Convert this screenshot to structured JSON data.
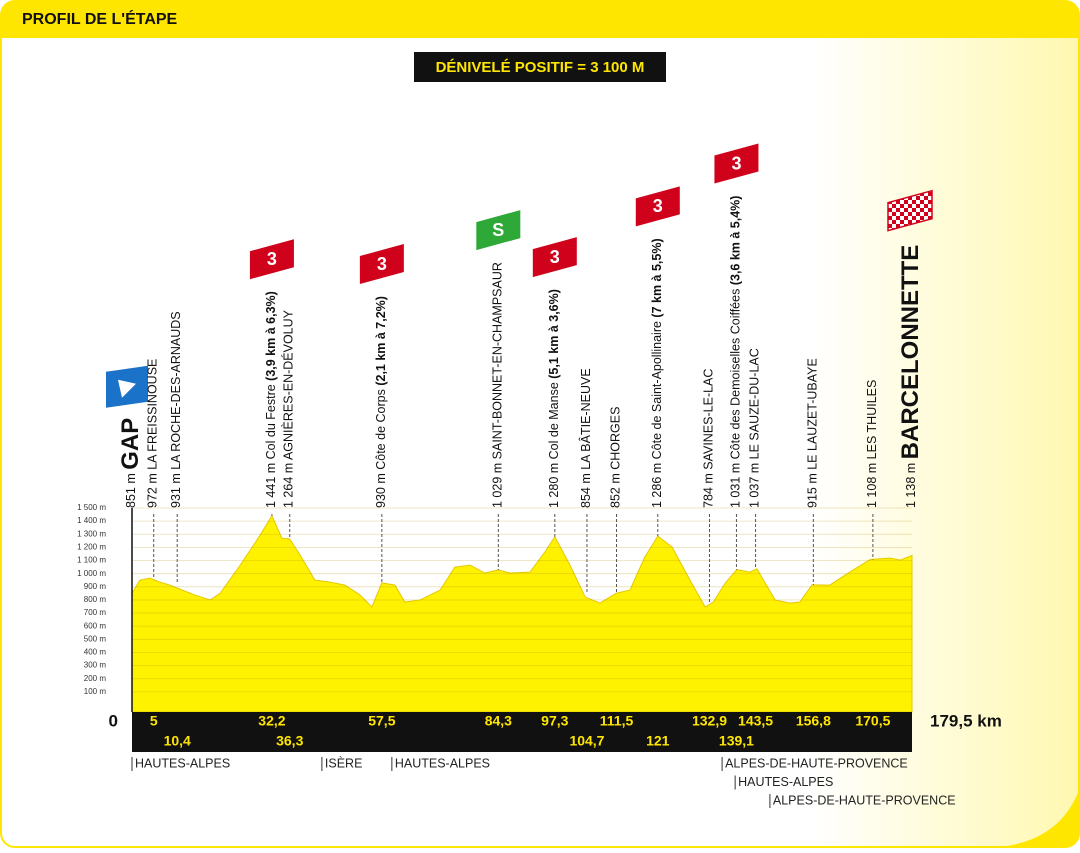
{
  "chart_data": {
    "type": "area",
    "title": "PROFIL DE L'ÉTAPE",
    "subtitle": "DÉNIVELÉ POSITIF = 3 100 M",
    "color": "#fff200",
    "x": [
      0,
      1.8,
      4.1,
      6.4,
      8.7,
      10.4,
      14.5,
      18,
      20.3,
      24.9,
      29.5,
      32.2,
      34.5,
      36.3,
      38.7,
      42.1,
      45.6,
      49,
      52.5,
      55.2,
      57.5,
      60.5,
      62.8,
      66.3,
      70.9,
      74.3,
      77.8,
      81.2,
      84.3,
      87,
      91.6,
      95,
      97.3,
      100.8,
      104.3,
      107.7,
      111.5,
      114.6,
      118,
      121,
      124.3,
      128.4,
      131.9,
      133.8,
      136.5,
      139.2,
      142.2,
      143.8,
      148,
      151.4,
      153.7,
      156.5,
      160.6,
      165.2,
      169.9,
      174.5,
      176.8,
      179.5
    ],
    "values": [
      851,
      950,
      966,
      936,
      913,
      890,
      837,
      800,
      852,
      1065,
      1294,
      1441,
      1270,
      1264,
      1141,
      951,
      936,
      913,
      837,
      746,
      930,
      913,
      784,
      800,
      875,
      1050,
      1065,
      1005,
      1029,
      1005,
      1012,
      1164,
      1280,
      1065,
      822,
      776,
      852,
      875,
      1126,
      1286,
      1202,
      951,
      746,
      784,
      928,
      1031,
      1012,
      1037,
      800,
      776,
      784,
      915,
      913,
      1012,
      1108,
      1118,
      1103,
      1138
    ],
    "xlim": [
      0,
      179.5
    ],
    "xticks": [
      0,
      {
        "value": 179.5,
        "label": "179,5 km"
      }
    ],
    "ylim": [
      0,
      1500
    ],
    "yticks": [
      {
        "value": 100,
        "label": "100 m"
      },
      {
        "value": 200,
        "label": "200 m"
      },
      {
        "value": 300,
        "label": "300 m"
      },
      {
        "value": 400,
        "label": "400 m"
      },
      {
        "value": 500,
        "label": "500 m"
      },
      {
        "value": 600,
        "label": "600 m"
      },
      {
        "value": 700,
        "label": "700 m"
      },
      {
        "value": 800,
        "label": "800 m"
      },
      {
        "value": 900,
        "label": "900 m"
      },
      {
        "value": 1000,
        "label": "1 000 m"
      },
      {
        "value": 1100,
        "label": "1 100 m"
      },
      {
        "value": 1200,
        "label": "1 200 m"
      },
      {
        "value": 1300,
        "label": "1 300 m"
      },
      {
        "value": 1400,
        "label": "1 400 m"
      },
      {
        "value": 1500,
        "label": "1 500 m"
      }
    ],
    "waypoints": [
      {
        "name": "GAP",
        "altitude": 851,
        "altitude_label": "851 m",
        "km": 0
      },
      {
        "name": "LA FREISSINOUSE",
        "altitude": 972,
        "altitude_label": "972 m",
        "km": 5,
        "km_label": "5"
      },
      {
        "name": "LA ROCHE-DES-ARNAUDS",
        "altitude": 931,
        "altitude_label": "931 m",
        "km": 10.4,
        "km_label": "10,4"
      },
      {
        "name": "Col du Festre",
        "detail": "(3,9 km à 6,3%)",
        "category": "3",
        "altitude": 1441,
        "altitude_label": "1 441 m",
        "km": 32.2,
        "km_label": "32,2"
      },
      {
        "name": "AGNIÈRES-EN-DÉVOLUY",
        "altitude": 1264,
        "altitude_label": "1 264 m",
        "km": 36.3,
        "km_label": "36,3"
      },
      {
        "name": "Côte de Corps",
        "detail": "(2,1 km à 7,2%)",
        "category": "3",
        "altitude": 930,
        "altitude_label": "930 m",
        "km": 57.5,
        "km_label": "57,5"
      },
      {
        "name": "SAINT-BONNET-EN-CHAMPSAUR",
        "category": "S",
        "altitude": 1029,
        "altitude_label": "1 029 m",
        "km": 84.3,
        "km_label": "84,3"
      },
      {
        "name": "Col de Manse",
        "detail": "(5,1 km à 3,6%)",
        "category": "3",
        "altitude": 1280,
        "altitude_label": "1 280 m",
        "km": 97.3,
        "km_label": "97,3"
      },
      {
        "name": "LA BÂTIE-NEUVE",
        "altitude": 854,
        "altitude_label": "854 m",
        "km": 104.7,
        "km_label": "104,7"
      },
      {
        "name": "CHORGES",
        "altitude": 852,
        "altitude_label": "852 m",
        "km": 111.5,
        "km_label": "111,5"
      },
      {
        "name": "Côte de Saint-Apollinaire",
        "detail": "(7 km à 5,5%)",
        "category": "3",
        "altitude": 1286,
        "altitude_label": "1 286 m",
        "km": 121,
        "km_label": "121"
      },
      {
        "name": "SAVINES-LE-LAC",
        "altitude": 784,
        "altitude_label": "784 m",
        "km": 132.9,
        "km_label": "132,9"
      },
      {
        "name": "Côte des Demoiselles Coiffées",
        "detail": "(3,6 km à 5,4%)",
        "category": "3",
        "altitude": 1031,
        "altitude_label": "1 031 m",
        "km": 139.1,
        "km_label": "139,1"
      },
      {
        "name": "LE SAUZE-DU-LAC",
        "altitude": 1037,
        "altitude_label": "1 037 m",
        "km": 143.5,
        "km_label": "143,5"
      },
      {
        "name": "LE LAUZET-UBAYE",
        "altitude": 915,
        "altitude_label": "915 m",
        "km": 156.8,
        "km_label": "156,8"
      },
      {
        "name": "LES THUILES",
        "altitude": 1108,
        "altitude_label": "1 108 m",
        "km": 170.5,
        "km_label": "170,5"
      },
      {
        "name": "BARCELONNETTE",
        "altitude": 1138,
        "altitude_label": "1 138 m",
        "km": 179.5
      }
    ],
    "regions": [
      {
        "name": "HAUTES-ALPES",
        "km": 0
      },
      {
        "name": "ISÈRE",
        "km": 43.7
      },
      {
        "name": "HAUTES-ALPES",
        "km": 59.8
      },
      {
        "name": "ALPES-DE-HAUTE-PROVENCE",
        "km": 135.8
      },
      {
        "name": "HAUTES-ALPES",
        "km": 138.8
      },
      {
        "name": "ALPES-DE-HAUTE-PROVENCE",
        "km": 146.8
      }
    ]
  }
}
